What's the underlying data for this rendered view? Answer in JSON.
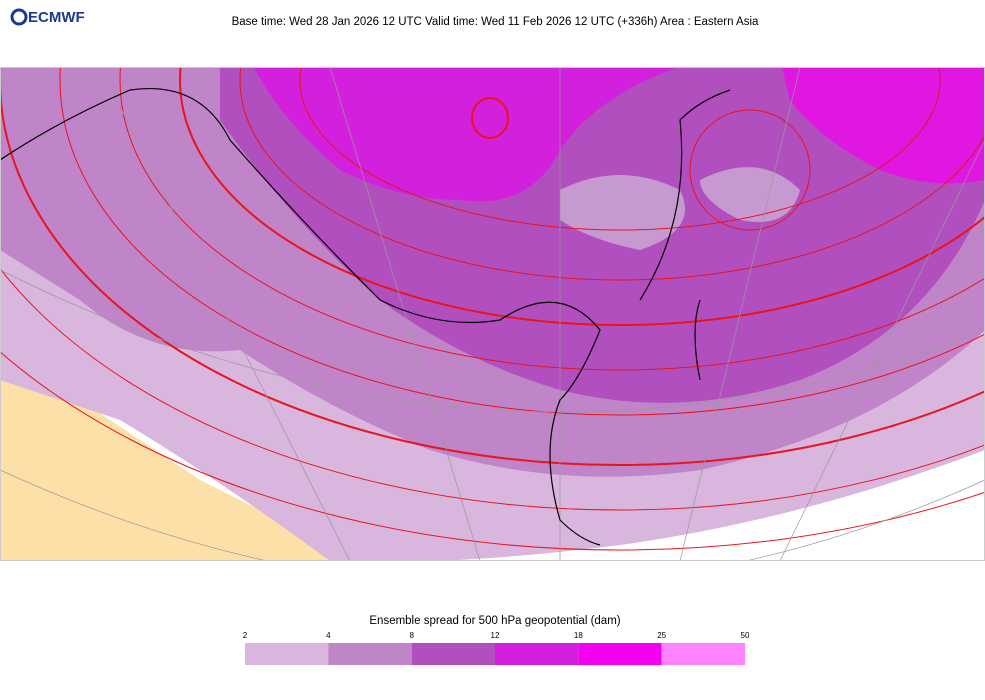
{
  "header": {
    "logo": "ECMWF",
    "title": "Base time: Wed 28 Jan 2026 12 UTC Valid time: Wed 11 Feb 2026 12 UTC (+336h) Area : Eastern Asia"
  },
  "legend": {
    "title": "Ensemble spread for 500 hPa geopotential (dam)",
    "ticks": [
      2,
      4,
      8,
      12,
      18,
      25,
      50
    ],
    "colors": [
      "#d8b6dd",
      "#c084c8",
      "#b24fbf",
      "#d220dc",
      "#f200f0",
      "#ff82ff"
    ]
  }
}
